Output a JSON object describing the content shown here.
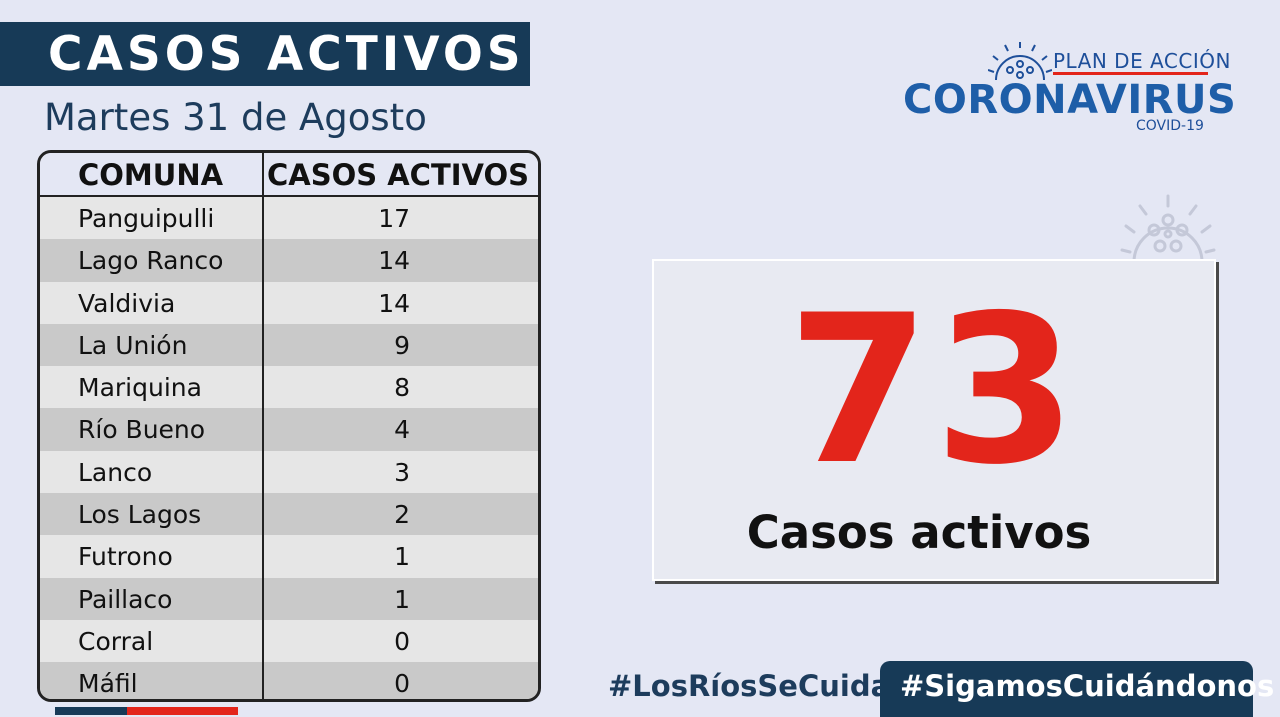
{
  "header": {
    "title": "CASOS ACTIVOS",
    "date": "Martes 31 de Agosto"
  },
  "table": {
    "columns": [
      "COMUNA",
      "CASOS ACTIVOS"
    ],
    "rows": [
      {
        "comuna": "Panguipulli",
        "casos": "17"
      },
      {
        "comuna": "Lago Ranco",
        "casos": "14"
      },
      {
        "comuna": "Valdivia",
        "casos": "14"
      },
      {
        "comuna": "La Unión",
        "casos": "9"
      },
      {
        "comuna": "Mariquina",
        "casos": "8"
      },
      {
        "comuna": "Río Bueno",
        "casos": "4"
      },
      {
        "comuna": "Lanco",
        "casos": "3"
      },
      {
        "comuna": "Los Lagos",
        "casos": "2"
      },
      {
        "comuna": "Futrono",
        "casos": "1"
      },
      {
        "comuna": "Paillaco",
        "casos": "1"
      },
      {
        "comuna": "Corral",
        "casos": "0"
      },
      {
        "comuna": "Máfil",
        "casos": "0"
      }
    ]
  },
  "logo": {
    "line1": "PLAN DE ACCIÓN",
    "line2": "CORONAVIRUS",
    "line3": "COVID-19",
    "icon": "virus-icon"
  },
  "summary": {
    "total": "73",
    "label": "Casos activos"
  },
  "footer": {
    "hashtag1": "#LosRíosSeCuida",
    "hashtag2": "#SigamosCuidándonos"
  },
  "colors": {
    "background": "#e4e7f4",
    "navy": "#173a57",
    "accent_red": "#e3251b",
    "logo_blue": "#1e5ea8"
  }
}
